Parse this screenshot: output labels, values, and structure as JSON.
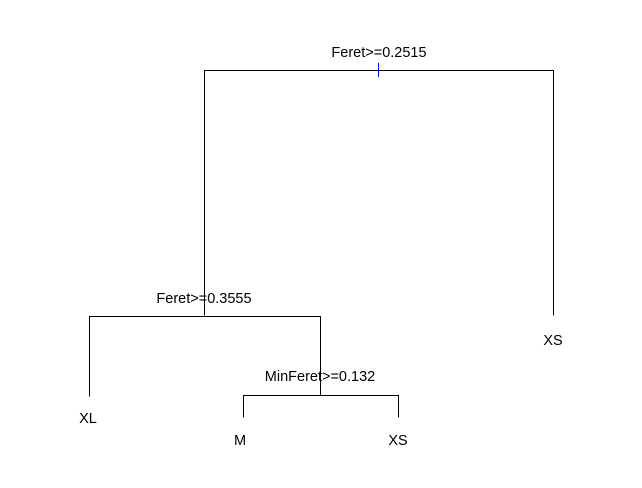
{
  "tree": {
    "splits": {
      "root": "Feret>=0.2515",
      "left": "Feret>=0.3555",
      "left_right": "MinFeret>=0.132"
    },
    "leaves": {
      "xl": "XL",
      "m": "M",
      "xs_inner": "XS",
      "xs_right": "XS"
    }
  },
  "colors": {
    "lines": "#000000",
    "root_marker": "#0000ff",
    "text": "#000000",
    "background": "#ffffff"
  }
}
